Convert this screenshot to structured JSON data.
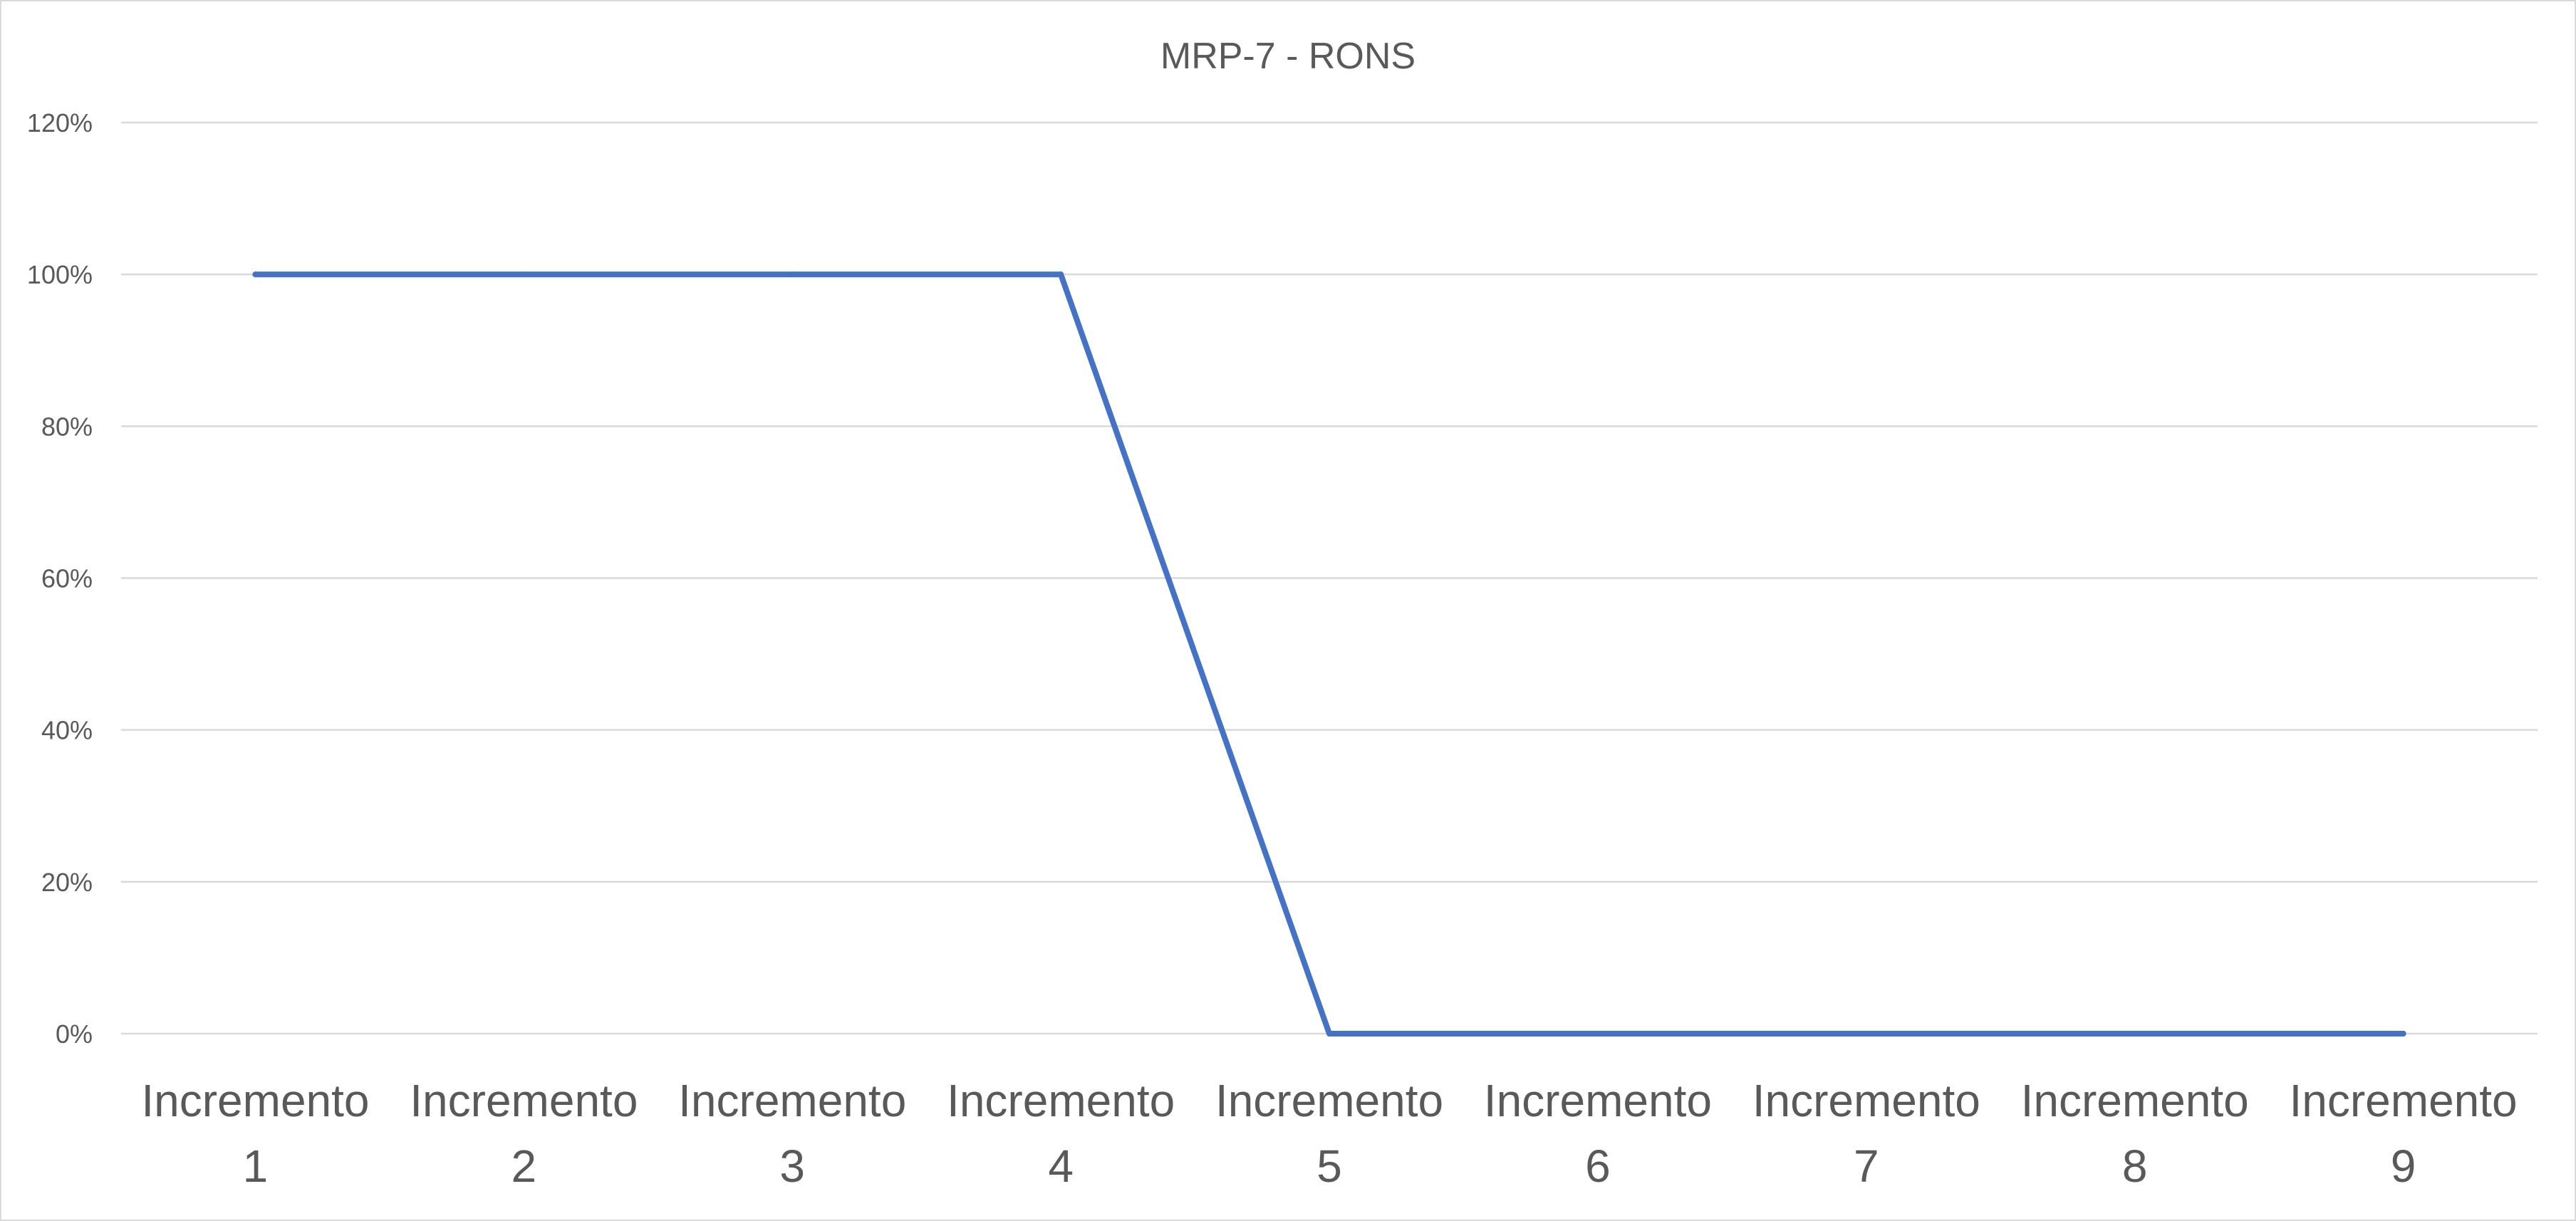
{
  "chart_data": {
    "type": "line",
    "title": "MRP-7 - RONS",
    "xlabel": "",
    "ylabel": "",
    "categories": [
      [
        "Incremento",
        "1"
      ],
      [
        "Incremento",
        "2"
      ],
      [
        "Incremento",
        "3"
      ],
      [
        "Incremento",
        "4"
      ],
      [
        "Incremento",
        "5"
      ],
      [
        "Incremento",
        "6"
      ],
      [
        "Incremento",
        "7"
      ],
      [
        "Incremento",
        "8"
      ],
      [
        "Incremento",
        "9"
      ]
    ],
    "series": [
      {
        "values": [
          1.0,
          1.0,
          1.0,
          1.0,
          0.0,
          0.0,
          0.0,
          0.0,
          0.0
        ],
        "color": "#4472c4"
      }
    ],
    "ylim": [
      0,
      1.2
    ],
    "yticks": [
      0,
      0.2,
      0.4,
      0.6,
      0.8,
      1.0,
      1.2
    ],
    "ytick_labels": [
      "0%",
      "20%",
      "40%",
      "60%",
      "80%",
      "100%",
      "120%"
    ],
    "grid": true,
    "legend": "none"
  }
}
